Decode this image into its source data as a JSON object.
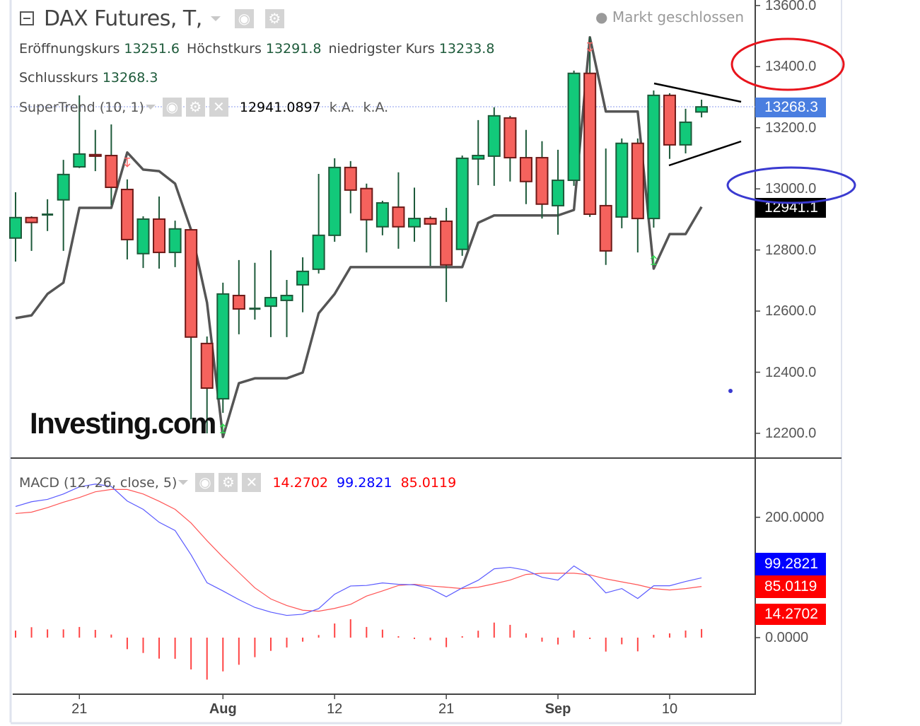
{
  "header": {
    "title": "DAX Futures, T,",
    "status": "Markt geschlossen",
    "status_icon": "dot-icon"
  },
  "ohlc": {
    "open_label": "Eröffnungskurs",
    "open": "13251.6",
    "high_label": "Höchstkurs",
    "high": "13291.8",
    "low_label": "niedrigster Kurs",
    "low": "13233.8",
    "close_label": "Schlusskurs",
    "close": "13268.3"
  },
  "supertrend_legend": {
    "label": "SuperTrend (10, 1)",
    "value": "12941.0897",
    "na1": "k.A.",
    "na2": "k.A."
  },
  "macd_legend": {
    "label": "MACD (12, 26, close, 5)",
    "histogram": "14.2702",
    "macd": "99.2821",
    "signal": "85.0119"
  },
  "buttons": {
    "eye": "◉",
    "gear": "⚙",
    "close": "✕"
  },
  "price_axis": {
    "ticks": [
      "13600.0",
      "13400.0",
      "13200.0",
      "13000.0",
      "12800.0",
      "12600.0",
      "12400.0",
      "12200.0"
    ],
    "last_price_tag": "13268.3",
    "supertrend_tag": "12941.1"
  },
  "macd_axis": {
    "ticks": [
      "200.0000",
      "0.0000"
    ],
    "macd_tag": "99.2821",
    "signal_tag": "85.0119",
    "histogram_tag": "14.2702"
  },
  "time_axis": [
    "21",
    "Aug",
    "12",
    "21",
    "Sep",
    "10"
  ],
  "logo": "Investing.com",
  "colors": {
    "up_fill": "#12c97a",
    "up_border": "#1d5a3a",
    "down_fill": "#f5625d",
    "down_border": "#6e1a18",
    "wick": "#1d5a3a",
    "supertrend": "#555555",
    "macd": "#5a5aff",
    "signal": "#ff5555",
    "histogram": "#ff4444",
    "last_price_tag": "#4a7ee0",
    "supertrend_tag": "#000000",
    "macd_tag": "#0000ff",
    "signal_tag": "#ff0000",
    "histogram_tag": "#ff0000",
    "annotation_red": "#e8141c",
    "annotation_blue": "#3a3ad0"
  },
  "chart_data": [
    {
      "type": "candlestick",
      "ylim": [
        12119,
        13618
      ],
      "grid": false,
      "open": [
        12839,
        12906,
        12917,
        12964,
        13072,
        13112,
        13109,
        12998,
        12788,
        12901,
        12792,
        12866,
        12494,
        12313,
        12651,
        12609,
        12616,
        12635,
        12686,
        12737,
        12848,
        13070,
        13001,
        12876,
        12940,
        12876,
        12903,
        12894,
        12802,
        13098,
        13107,
        13232,
        13102,
        13102,
        12945,
        13028,
        13378,
        12945,
        12908,
        13149,
        12903,
        13306,
        13144,
        13251.6
      ],
      "high": [
        12989,
        12910,
        12966,
        13095,
        13306,
        13193,
        13211,
        13031,
        12910,
        12975,
        12896,
        12866,
        12517,
        12693,
        12767,
        12758,
        12799,
        12702,
        12776,
        13049,
        13100,
        13091,
        13017,
        12961,
        13054,
        13004,
        12910,
        12938,
        13109,
        13225,
        13267,
        13239,
        13193,
        13156,
        13128,
        13387,
        13496,
        13132,
        13165,
        13165,
        13322,
        13313,
        13262,
        13291.8
      ],
      "low": [
        12762,
        12797,
        12862,
        12797,
        13068,
        13058,
        12947,
        12769,
        12741,
        12739,
        12744,
        12246,
        12200,
        12267,
        12524,
        12572,
        12515,
        12515,
        12596,
        12723,
        12827,
        12920,
        12792,
        12848,
        12804,
        12827,
        12748,
        12630,
        12781,
        13012,
        13010,
        13024,
        12950,
        12903,
        12850,
        13010,
        12908,
        12751,
        12871,
        12792,
        12873,
        13098,
        13116,
        13233.8
      ],
      "close": [
        12906,
        12890,
        12917,
        13047,
        13114,
        13107,
        13005,
        12834,
        12901,
        12792,
        12869,
        12515,
        12348,
        12656,
        12607,
        12609,
        12644,
        12651,
        12730,
        12848,
        13070,
        12996,
        12899,
        12954,
        12876,
        12903,
        12885,
        12751,
        13100,
        13109,
        13239,
        13102,
        13024,
        12950,
        13028,
        13378,
        12917,
        12797,
        13149,
        12903,
        13306,
        13144,
        13218,
        13268.3
      ],
      "supertrend": [
        12577,
        12586,
        12656,
        12693,
        12938,
        12938,
        12938,
        13119,
        13063,
        13058,
        13017,
        12866,
        12628,
        12188,
        12364,
        12380,
        12380,
        12380,
        12399,
        12593,
        12656,
        12744,
        12744,
        12744,
        12744,
        12744,
        12744,
        12744,
        12744,
        12889,
        12913,
        12913,
        12913,
        12913,
        12913,
        12931,
        13496,
        13253,
        13253,
        13253,
        12739,
        12852,
        12852,
        12941.09
      ],
      "sell_signals": [
        7,
        36
      ],
      "buy_signals": [
        13,
        40
      ]
    },
    {
      "type": "line",
      "ylim": [
        -94,
        296
      ],
      "series": [
        {
          "name": "MACD",
          "values": [
            217.9,
            225.8,
            229.7,
            238.7,
            250.5,
            255.2,
            251.3,
            227.0,
            213.2,
            191.7,
            178.0,
            137.6,
            91.3,
            77.6,
            63.1,
            50.2,
            42.3,
            36.9,
            38.8,
            48.2,
            72.1,
            85.8,
            86.7,
            90.9,
            88.6,
            87.8,
            81.5,
            67.9,
            82.7,
            95.3,
            114.4,
            116.8,
            112.1,
            100.3,
            95.6,
            119.1,
            102.3,
            74.4,
            81.5,
            65.0,
            86.2,
            86.2,
            93.3,
            99.2821
          ]
        },
        {
          "name": "Signal",
          "values": [
            206.2,
            208.5,
            216.0,
            225.0,
            232.8,
            242.3,
            246.2,
            246.2,
            238.7,
            226.6,
            213.2,
            190.5,
            161.1,
            133.7,
            108.2,
            82.7,
            64.3,
            53.3,
            45.5,
            43.9,
            48.6,
            55.3,
            69.0,
            77.6,
            86.7,
            88.6,
            85.8,
            83.8,
            81.5,
            83.8,
            89.4,
            95.6,
            105.0,
            107.0,
            107.0,
            107.0,
            104.3,
            97.6,
            92.6,
            87.8,
            81.5,
            79.1,
            81.5,
            85.0119
          ]
        },
        {
          "name": "Histogram",
          "values": [
            11.7,
            17.3,
            13.7,
            13.7,
            17.7,
            12.9,
            5.1,
            -19.2,
            -25.5,
            -34.9,
            -35.2,
            -52.9,
            -69.8,
            -56.1,
            -45.1,
            -32.5,
            -22.0,
            -16.4,
            -6.7,
            4.3,
            23.5,
            30.5,
            17.7,
            13.3,
            1.9,
            -0.8,
            -4.3,
            -15.9,
            1.2,
            11.5,
            25.0,
            21.2,
            7.1,
            -6.7,
            -11.4,
            12.1,
            -2.0,
            -23.2,
            -11.1,
            -22.8,
            4.7,
            7.1,
            11.8,
            14.2702
          ]
        }
      ]
    }
  ]
}
